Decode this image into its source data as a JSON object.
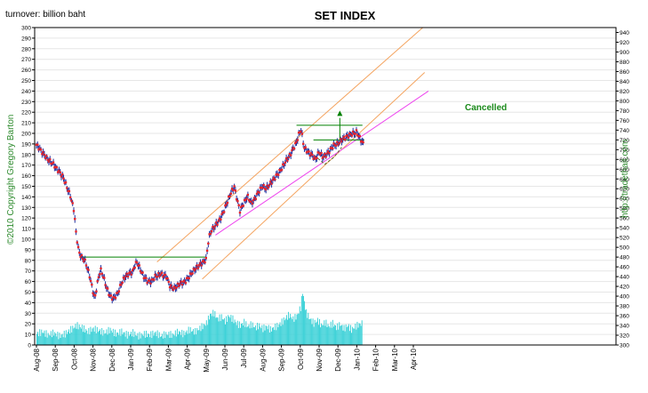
{
  "chart_data": {
    "type": "candlestick",
    "title": "SET INDEX",
    "left_axis_label": "turnover: billion baht",
    "copyright_text": "©2010 Copyright Gregory Barton",
    "url_text": "http://tradethait.com",
    "annotation": "Cancelled",
    "left_axis": {
      "ylim": [
        0,
        300
      ],
      "ticks": [
        0,
        10,
        20,
        30,
        40,
        50,
        60,
        70,
        80,
        90,
        100,
        110,
        120,
        130,
        140,
        150,
        160,
        170,
        180,
        190,
        200,
        210,
        220,
        230,
        240,
        250,
        260,
        270,
        280,
        290,
        300
      ]
    },
    "right_axis": {
      "ylim": [
        300,
        950
      ],
      "ticks": [
        300,
        320,
        340,
        360,
        380,
        400,
        420,
        440,
        460,
        480,
        500,
        520,
        540,
        560,
        580,
        600,
        620,
        640,
        660,
        680,
        700,
        720,
        740,
        760,
        780,
        800,
        820,
        840,
        860,
        880,
        900,
        920,
        940
      ]
    },
    "x_categories": [
      "Aug-08",
      "Sep-08",
      "Oct-08",
      "Nov-08",
      "Dec-08",
      "Jan-09",
      "Feb-09",
      "Mar-09",
      "Apr-09",
      "May-09",
      "Jun-09",
      "Jul-09",
      "Aug-09",
      "Sep-09",
      "Oct-09",
      "Nov-09",
      "Dec-09",
      "Jan-10",
      "Feb-10",
      "Mar-10",
      "Apr-10"
    ],
    "price_path": [
      [
        0,
        710
      ],
      [
        0.3,
        695
      ],
      [
        0.6,
        680
      ],
      [
        0.9,
        670
      ],
      [
        1.1,
        660
      ],
      [
        1.4,
        645
      ],
      [
        1.6,
        625
      ],
      [
        1.8,
        605
      ],
      [
        2.0,
        575
      ],
      [
        2.1,
        530
      ],
      [
        2.25,
        490
      ],
      [
        2.4,
        480
      ],
      [
        2.6,
        470
      ],
      [
        2.8,
        445
      ],
      [
        3.0,
        410
      ],
      [
        3.1,
        395
      ],
      [
        3.25,
        430
      ],
      [
        3.4,
        455
      ],
      [
        3.55,
        440
      ],
      [
        3.7,
        420
      ],
      [
        3.9,
        400
      ],
      [
        4.1,
        395
      ],
      [
        4.3,
        405
      ],
      [
        4.5,
        425
      ],
      [
        4.7,
        440
      ],
      [
        4.9,
        445
      ],
      [
        5.1,
        450
      ],
      [
        5.25,
        465
      ],
      [
        5.35,
        470
      ],
      [
        5.5,
        455
      ],
      [
        5.7,
        440
      ],
      [
        5.9,
        430
      ],
      [
        6.1,
        430
      ],
      [
        6.3,
        440
      ],
      [
        6.6,
        445
      ],
      [
        6.9,
        440
      ],
      [
        7.1,
        420
      ],
      [
        7.3,
        415
      ],
      [
        7.6,
        425
      ],
      [
        7.9,
        430
      ],
      [
        8.1,
        440
      ],
      [
        8.4,
        455
      ],
      [
        8.7,
        465
      ],
      [
        9.0,
        475
      ],
      [
        9.15,
        520
      ],
      [
        9.3,
        535
      ],
      [
        9.5,
        545
      ],
      [
        9.7,
        555
      ],
      [
        9.9,
        570
      ],
      [
        10.1,
        590
      ],
      [
        10.3,
        610
      ],
      [
        10.5,
        625
      ],
      [
        10.6,
        605
      ],
      [
        10.8,
        575
      ],
      [
        11.0,
        590
      ],
      [
        11.2,
        605
      ],
      [
        11.4,
        590
      ],
      [
        11.6,
        600
      ],
      [
        11.8,
        615
      ],
      [
        12.0,
        625
      ],
      [
        12.2,
        620
      ],
      [
        12.4,
        630
      ],
      [
        12.6,
        640
      ],
      [
        12.8,
        650
      ],
      [
        13.0,
        660
      ],
      [
        13.2,
        675
      ],
      [
        13.4,
        685
      ],
      [
        13.6,
        700
      ],
      [
        13.8,
        715
      ],
      [
        13.95,
        735
      ],
      [
        14.05,
        740
      ],
      [
        14.2,
        705
      ],
      [
        14.4,
        695
      ],
      [
        14.6,
        690
      ],
      [
        14.8,
        680
      ],
      [
        15.0,
        695
      ],
      [
        15.2,
        685
      ],
      [
        15.4,
        690
      ],
      [
        15.6,
        700
      ],
      [
        15.8,
        710
      ],
      [
        16.0,
        712
      ],
      [
        16.2,
        720
      ],
      [
        16.4,
        725
      ],
      [
        16.6,
        730
      ],
      [
        16.8,
        733
      ],
      [
        17.0,
        736
      ],
      [
        17.1,
        728
      ],
      [
        17.25,
        718
      ],
      [
        17.35,
        712
      ]
    ],
    "volume": [
      [
        0,
        10
      ],
      [
        0.3,
        12
      ],
      [
        0.6,
        9
      ],
      [
        0.9,
        11
      ],
      [
        1.2,
        8
      ],
      [
        1.5,
        10
      ],
      [
        1.8,
        14
      ],
      [
        2.1,
        18
      ],
      [
        2.4,
        16
      ],
      [
        2.7,
        12
      ],
      [
        3.0,
        15
      ],
      [
        3.3,
        13
      ],
      [
        3.6,
        11
      ],
      [
        3.9,
        14
      ],
      [
        4.2,
        10
      ],
      [
        4.5,
        12
      ],
      [
        4.8,
        9
      ],
      [
        5.1,
        11
      ],
      [
        5.4,
        8
      ],
      [
        5.7,
        10
      ],
      [
        6.0,
        9
      ],
      [
        6.3,
        11
      ],
      [
        6.6,
        8
      ],
      [
        6.9,
        10
      ],
      [
        7.2,
        9
      ],
      [
        7.5,
        12
      ],
      [
        7.8,
        10
      ],
      [
        8.1,
        14
      ],
      [
        8.4,
        12
      ],
      [
        8.7,
        16
      ],
      [
        9.0,
        20
      ],
      [
        9.2,
        28
      ],
      [
        9.4,
        30
      ],
      [
        9.6,
        24
      ],
      [
        9.8,
        26
      ],
      [
        10.0,
        22
      ],
      [
        10.2,
        27
      ],
      [
        10.4,
        24
      ],
      [
        10.6,
        20
      ],
      [
        10.8,
        18
      ],
      [
        11.0,
        21
      ],
      [
        11.2,
        17
      ],
      [
        11.4,
        19
      ],
      [
        11.6,
        16
      ],
      [
        11.8,
        18
      ],
      [
        12.0,
        15
      ],
      [
        12.2,
        17
      ],
      [
        12.4,
        14
      ],
      [
        12.6,
        16
      ],
      [
        12.8,
        18
      ],
      [
        13.0,
        21
      ],
      [
        13.2,
        25
      ],
      [
        13.4,
        28
      ],
      [
        13.6,
        24
      ],
      [
        13.8,
        27
      ],
      [
        14.0,
        35
      ],
      [
        14.1,
        50
      ],
      [
        14.3,
        30
      ],
      [
        14.5,
        24
      ],
      [
        14.7,
        20
      ],
      [
        14.9,
        23
      ],
      [
        15.1,
        18
      ],
      [
        15.3,
        21
      ],
      [
        15.5,
        17
      ],
      [
        15.7,
        20
      ],
      [
        15.9,
        16
      ],
      [
        16.1,
        19
      ],
      [
        16.3,
        15
      ],
      [
        16.5,
        18
      ],
      [
        16.7,
        14
      ],
      [
        16.9,
        17
      ],
      [
        17.1,
        19
      ],
      [
        17.3,
        20
      ]
    ],
    "overlays": {
      "horizontal_lines": [
        {
          "x0": 2.3,
          "x1": 9.0,
          "y": 480,
          "color": "#008000"
        },
        {
          "x0": 13.8,
          "x1": 17.3,
          "y": 750,
          "color": "#008000"
        },
        {
          "x0": 14.7,
          "x1": 17.4,
          "y": 720,
          "color": "#008000"
        }
      ],
      "vertical_lines": [
        {
          "x": 16.1,
          "y0": 720,
          "y1": 765,
          "color": "#008000"
        }
      ],
      "arrow": {
        "x": 16.1,
        "y": 780,
        "color": "#008000"
      },
      "channel_lines": [
        {
          "x0": 6.4,
          "y0": 470,
          "x1": 20.5,
          "y1": 950,
          "color": "#f4a460"
        },
        {
          "x0": 8.8,
          "y0": 435,
          "x1": 20.6,
          "y1": 858,
          "color": "#f4a460"
        },
        {
          "x0": 9.5,
          "y0": 525,
          "x1": 20.8,
          "y1": 820,
          "color": "#ee44ee"
        }
      ],
      "dashed_path": [
        [
          14.2,
          705
        ],
        [
          14.7,
          690
        ],
        [
          15.3,
          670
        ],
        [
          15.8,
          685
        ],
        [
          16.2,
          705
        ]
      ]
    }
  }
}
